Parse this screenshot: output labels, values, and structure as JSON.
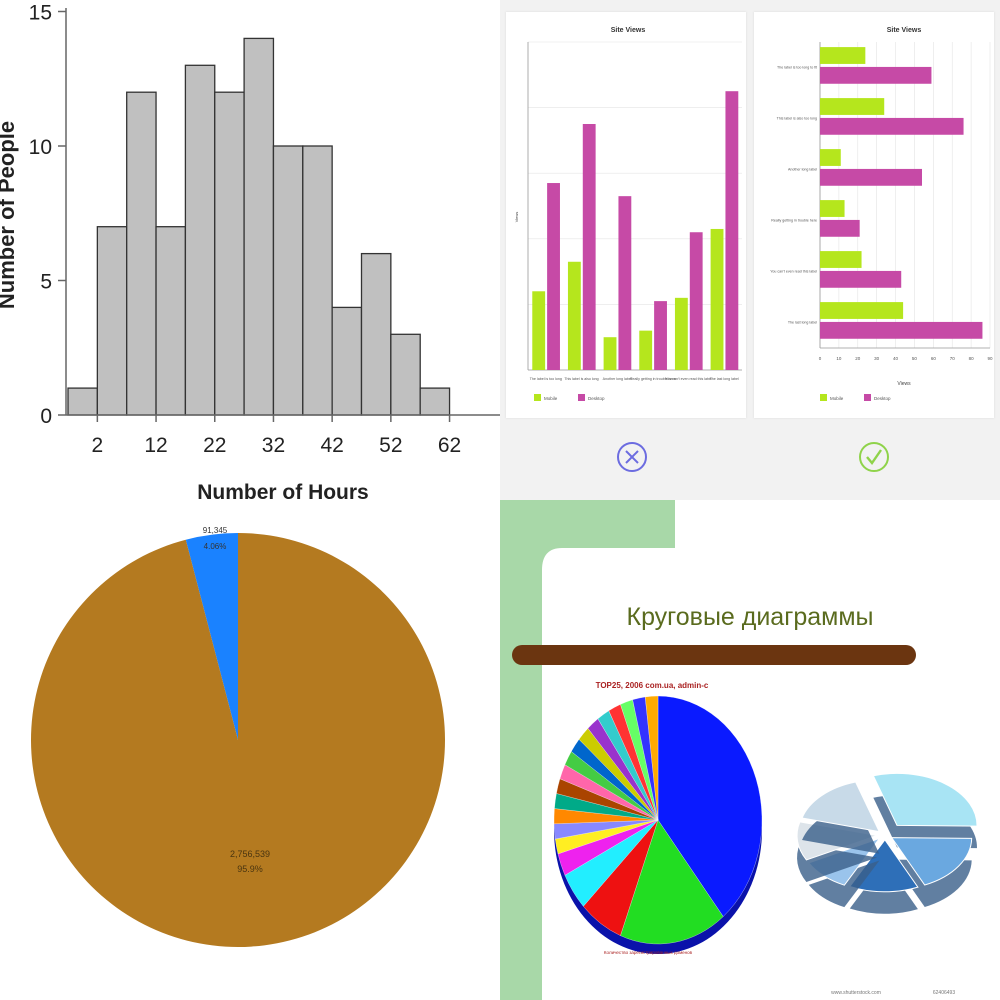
{
  "histogram": {
    "chart_data": {
      "type": "bar",
      "title": "",
      "xlabel": "Number of Hours",
      "ylabel": "Number of People",
      "x_ticks": [
        "2",
        "12",
        "22",
        "32",
        "42",
        "52",
        "62"
      ],
      "y_ticks": [
        "0",
        "5",
        "10",
        "15"
      ],
      "ylim": [
        0,
        15
      ],
      "bins": [
        {
          "start": -3,
          "end": 2,
          "value": 1
        },
        {
          "start": 2,
          "end": 7,
          "value": 7
        },
        {
          "start": 7,
          "end": 12,
          "value": 12
        },
        {
          "start": 12,
          "end": 17,
          "value": 7
        },
        {
          "start": 17,
          "end": 22,
          "value": 13
        },
        {
          "start": 22,
          "end": 27,
          "value": 12
        },
        {
          "start": 27,
          "end": 32,
          "value": 14
        },
        {
          "start": 32,
          "end": 37,
          "value": 10
        },
        {
          "start": 37,
          "end": 42,
          "value": 10
        },
        {
          "start": 42,
          "end": 47,
          "value": 4
        },
        {
          "start": 47,
          "end": 52,
          "value": 6
        },
        {
          "start": 52,
          "end": 57,
          "value": 3
        },
        {
          "start": 57,
          "end": 62,
          "value": 1
        }
      ],
      "bar_color": "#c0c0c0",
      "edge_color": "#333333"
    }
  },
  "comparison": {
    "accent_wrong": "#6c6ce0",
    "accent_right": "#8fd34a",
    "wrong_icon": "x-circle-icon",
    "right_icon": "check-circle-icon",
    "vertical": {
      "chart_data": {
        "type": "bar",
        "orientation": "vertical",
        "title": "Site Views",
        "ylabel": "Views",
        "categories": [
          "The label is too long",
          "This label is also long",
          "Another long label",
          "Really getting in trouble here",
          "You can't even read this label",
          "The last long label"
        ],
        "series": [
          {
            "name": "Mobile",
            "color": "#b5e61d",
            "values": [
              24,
              33,
              10,
              12,
              22,
              43
            ]
          },
          {
            "name": "Desktop",
            "color": "#c64aa6",
            "values": [
              57,
              75,
              53,
              21,
              42,
              85
            ]
          }
        ],
        "ylim": [
          0,
          100
        ]
      }
    },
    "horizontal": {
      "chart_data": {
        "type": "bar",
        "orientation": "horizontal",
        "title": "Site Views",
        "xlabel": "Views",
        "categories": [
          "The label is too long to fit",
          "This label is also too long",
          "Another long label",
          "Really getting in trouble here",
          "You can't even read this label",
          "The last long label"
        ],
        "series": [
          {
            "name": "Mobile",
            "color": "#b5e61d",
            "values": [
              24,
              34,
              11,
              13,
              22,
              44
            ]
          },
          {
            "name": "Desktop",
            "color": "#c64aa6",
            "values": [
              59,
              76,
              54,
              21,
              43,
              86
            ]
          }
        ],
        "x_ticks": [
          "0",
          "10",
          "20",
          "30",
          "40",
          "50",
          "60",
          "70",
          "80",
          "90"
        ],
        "xlim": [
          0,
          90
        ]
      }
    }
  },
  "pie": {
    "chart_data": {
      "type": "pie",
      "slices": [
        {
          "value_label": "91,345",
          "percent_label": "4.06%",
          "percent": 4.06,
          "color": "#1a82ff"
        },
        {
          "value_label": "2,756,539",
          "percent_label": "95.9%",
          "percent": 95.94,
          "color": "#b47a20"
        }
      ]
    }
  },
  "slide": {
    "title": "Круговые диаграммы",
    "pie_chart_title": "TOP25, 2006 com.ua, admin-c",
    "pie_footer": "Количество зарегистрированных доменов",
    "watermark_left": "www.shutterstock.com",
    "watermark_right": "62406493",
    "frame_color": "#a8d8a8",
    "bar_color": "#6b3510",
    "title_color": "#5a6b1e",
    "chart_data": {
      "type": "pie",
      "slices": [
        {
          "label": "",
          "percent": 40,
          "color": "#0a1aff"
        },
        {
          "label": "",
          "percent": 17,
          "color": "#22dd22"
        },
        {
          "label": "",
          "percent": 7,
          "color": "#ee1111"
        },
        {
          "label": "",
          "percent": 5,
          "color": "#22eeff"
        },
        {
          "label": "",
          "percent": 3,
          "color": "#ee22ee"
        },
        {
          "label": "",
          "percent": 2,
          "color": "#ffee22"
        },
        {
          "label": "",
          "percent": 2,
          "color": "#8888ff"
        },
        {
          "label": "",
          "percent": 2,
          "color": "#ff8800"
        },
        {
          "label": "",
          "percent": 2,
          "color": "#00aa88"
        },
        {
          "label": "",
          "percent": 2,
          "color": "#aa4400"
        },
        {
          "label": "",
          "percent": 2,
          "color": "#ff66aa"
        },
        {
          "label": "",
          "percent": 2,
          "color": "#44cc44"
        },
        {
          "label": "",
          "percent": 2,
          "color": "#0066cc"
        },
        {
          "label": "",
          "percent": 2,
          "color": "#cccc00"
        },
        {
          "label": "",
          "percent": 2,
          "color": "#9933cc"
        },
        {
          "label": "",
          "percent": 2,
          "color": "#33cccc"
        },
        {
          "label": "",
          "percent": 2,
          "color": "#ff3333"
        },
        {
          "label": "",
          "percent": 2,
          "color": "#66ff66"
        },
        {
          "label": "",
          "percent": 2,
          "color": "#3333ff"
        },
        {
          "label": "",
          "percent": 2,
          "color": "#ffaa00"
        }
      ],
      "exploded_3d_pie": {
        "type": "pie",
        "slices": [
          {
            "percent": 30,
            "color": "#a8e4f4"
          },
          {
            "percent": 18,
            "color": "#6aa8e0"
          },
          {
            "percent": 14,
            "color": "#2e6fb8"
          },
          {
            "percent": 10,
            "color": "#9ac4ec"
          },
          {
            "percent": 12,
            "color": "#dde4ea"
          },
          {
            "percent": 16,
            "color": "#c8dae8"
          }
        ]
      }
    }
  }
}
